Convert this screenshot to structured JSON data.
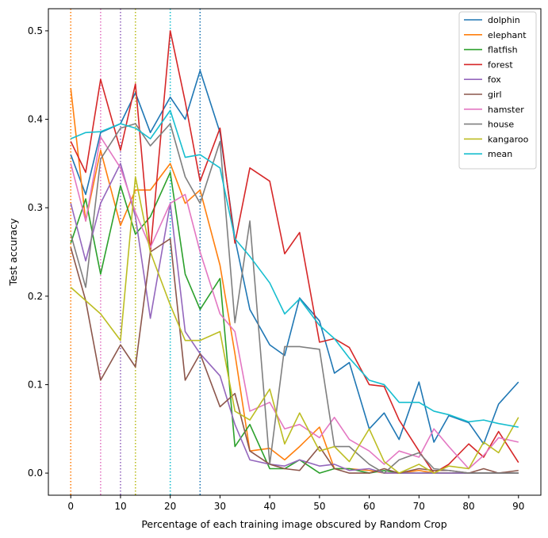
{
  "chart_data": {
    "type": "line",
    "title": "",
    "xlabel": "Percentage of each training image obscured by Random Crop",
    "ylabel": "Test accuracy",
    "xlim": [
      -4.5,
      94.5
    ],
    "ylim": [
      -0.025,
      0.525
    ],
    "xticks": [
      0,
      10,
      20,
      30,
      40,
      50,
      60,
      70,
      80,
      90
    ],
    "yticks": [
      0.0,
      0.1,
      0.2,
      0.3,
      0.4,
      0.5
    ],
    "ytick_labels": [
      "0.0",
      "0.1",
      "0.2",
      "0.3",
      "0.4",
      "0.5"
    ],
    "legend_position": "top-right",
    "x": [
      0,
      3,
      6,
      10,
      13,
      16,
      20,
      23,
      26,
      30,
      33,
      36,
      40,
      43,
      46,
      50,
      53,
      56,
      60,
      63,
      66,
      70,
      73,
      76,
      80,
      83,
      86,
      90
    ],
    "series": [
      {
        "name": "dolphin",
        "color": "#1f77b4",
        "values": [
          0.36,
          0.315,
          0.385,
          0.395,
          0.43,
          0.385,
          0.425,
          0.4,
          0.455,
          0.385,
          0.265,
          0.185,
          0.145,
          0.133,
          0.198,
          0.172,
          0.113,
          0.125,
          0.05,
          0.068,
          0.038,
          0.103,
          0.035,
          0.065,
          0.057,
          0.033,
          0.078,
          0.103
        ]
      },
      {
        "name": "elephant",
        "color": "#ff7f0e",
        "values": [
          0.435,
          0.285,
          0.365,
          0.28,
          0.32,
          0.32,
          0.35,
          0.305,
          0.32,
          0.235,
          0.135,
          0.025,
          0.028,
          0.015,
          0.03,
          0.052,
          0.005,
          0.005,
          0.003,
          0.0,
          0.0,
          0.003,
          0.0,
          0.0,
          0.0,
          0.0,
          0.0,
          0.0
        ]
      },
      {
        "name": "flatfish",
        "color": "#2ca02c",
        "values": [
          0.26,
          0.31,
          0.225,
          0.325,
          0.27,
          0.29,
          0.34,
          0.225,
          0.185,
          0.22,
          0.03,
          0.055,
          0.005,
          0.005,
          0.015,
          0.0,
          0.005,
          0.005,
          0.0,
          0.003,
          0.0,
          0.0,
          0.0,
          0.0,
          0.0,
          0.0,
          0.0,
          0.0
        ]
      },
      {
        "name": "forest",
        "color": "#d62728",
        "values": [
          0.375,
          0.34,
          0.445,
          0.365,
          0.44,
          0.25,
          0.5,
          0.42,
          0.33,
          0.39,
          0.26,
          0.345,
          0.33,
          0.248,
          0.272,
          0.148,
          0.152,
          0.142,
          0.1,
          0.098,
          0.06,
          0.025,
          0.0,
          0.01,
          0.033,
          0.018,
          0.047,
          0.012
        ]
      },
      {
        "name": "fox",
        "color": "#9467bd",
        "values": [
          0.305,
          0.24,
          0.305,
          0.35,
          0.29,
          0.175,
          0.305,
          0.16,
          0.135,
          0.11,
          0.055,
          0.015,
          0.01,
          0.008,
          0.015,
          0.008,
          0.01,
          0.003,
          0.005,
          0.0,
          0.0,
          0.0,
          0.0,
          0.0,
          0.0,
          0.0,
          0.0,
          0.0
        ]
      },
      {
        "name": "girl",
        "color": "#8c564b",
        "values": [
          0.255,
          0.195,
          0.105,
          0.145,
          0.12,
          0.25,
          0.265,
          0.105,
          0.135,
          0.075,
          0.09,
          0.025,
          0.01,
          0.005,
          0.003,
          0.03,
          0.005,
          0.0,
          0.0,
          0.005,
          0.0,
          0.005,
          0.003,
          0.003,
          0.0,
          0.005,
          0.0,
          0.003
        ]
      },
      {
        "name": "hamster",
        "color": "#e377c2",
        "values": [
          0.35,
          0.285,
          0.38,
          0.345,
          0.295,
          0.255,
          0.305,
          0.315,
          0.25,
          0.18,
          0.16,
          0.07,
          0.08,
          0.05,
          0.055,
          0.04,
          0.063,
          0.038,
          0.025,
          0.01,
          0.025,
          0.018,
          0.05,
          0.03,
          0.005,
          0.02,
          0.04,
          0.035
        ]
      },
      {
        "name": "house",
        "color": "#7f7f7f",
        "values": [
          0.27,
          0.21,
          0.355,
          0.39,
          0.395,
          0.37,
          0.395,
          0.335,
          0.305,
          0.375,
          0.17,
          0.285,
          0.01,
          0.143,
          0.143,
          0.14,
          0.03,
          0.03,
          0.01,
          0.0,
          0.015,
          0.023,
          0.005,
          0.003,
          0.0,
          0.0,
          0.0,
          0.0
        ]
      },
      {
        "name": "kangaroo",
        "color": "#bcbd22",
        "values": [
          0.21,
          0.195,
          0.18,
          0.15,
          0.335,
          0.25,
          0.19,
          0.15,
          0.15,
          0.16,
          0.07,
          0.06,
          0.095,
          0.033,
          0.068,
          0.025,
          0.03,
          0.013,
          0.05,
          0.013,
          0.0,
          0.01,
          0.0,
          0.008,
          0.005,
          0.035,
          0.023,
          0.063
        ]
      },
      {
        "name": "mean",
        "color": "#17becf",
        "values": [
          0.378,
          0.385,
          0.386,
          0.395,
          0.39,
          0.378,
          0.41,
          0.357,
          0.36,
          0.345,
          0.265,
          0.245,
          0.215,
          0.18,
          0.197,
          0.167,
          0.152,
          0.13,
          0.105,
          0.1,
          0.08,
          0.08,
          0.07,
          0.066,
          0.058,
          0.06,
          0.056,
          0.052
        ]
      }
    ],
    "vlines": [
      {
        "x": 0,
        "color": "#ff7f0e"
      },
      {
        "x": 6,
        "color": "#e377c2"
      },
      {
        "x": 10,
        "color": "#9467bd"
      },
      {
        "x": 13,
        "color": "#bcbd22"
      },
      {
        "x": 20,
        "color": "#17becf"
      },
      {
        "x": 26,
        "color": "#1f77b4"
      }
    ]
  }
}
